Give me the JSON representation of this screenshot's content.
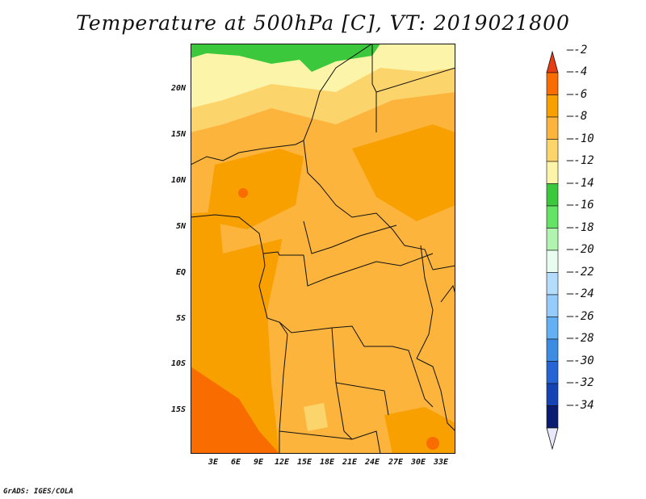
{
  "title": "Temperature at 500hPa [C], VT: 2019021800",
  "credit": "GrADS: IGES/COLA",
  "lat_labels": [
    "20N",
    "15N",
    "10N",
    "5N",
    "EQ",
    "5S",
    "10S",
    "15S"
  ],
  "lon_labels": [
    "3E",
    "6E",
    "9E",
    "12E",
    "15E",
    "18E",
    "21E",
    "24E",
    "27E",
    "30E",
    "33E"
  ],
  "colorbar": {
    "labels": [
      "-2",
      "-4",
      "-6",
      "-8",
      "-10",
      "-12",
      "-14",
      "-16",
      "-18",
      "-20",
      "-22",
      "-24",
      "-26",
      "-28",
      "-30",
      "-32",
      "-34"
    ],
    "colors": [
      "#f03c14",
      "#f86c00",
      "#f8a000",
      "#fcb43c",
      "#fcd46c",
      "#fcf4a8",
      "#3cc83c",
      "#64e464",
      "#b0f4b0",
      "#e8fcf0",
      "#b4dcfc",
      "#96ccfc",
      "#64b0f4",
      "#3c8ce4",
      "#2464d4",
      "#1444b4",
      "#0a1c70"
    ],
    "top_arrow": "#e83c14",
    "bottom_arrow": "#e8e8fc"
  }
}
